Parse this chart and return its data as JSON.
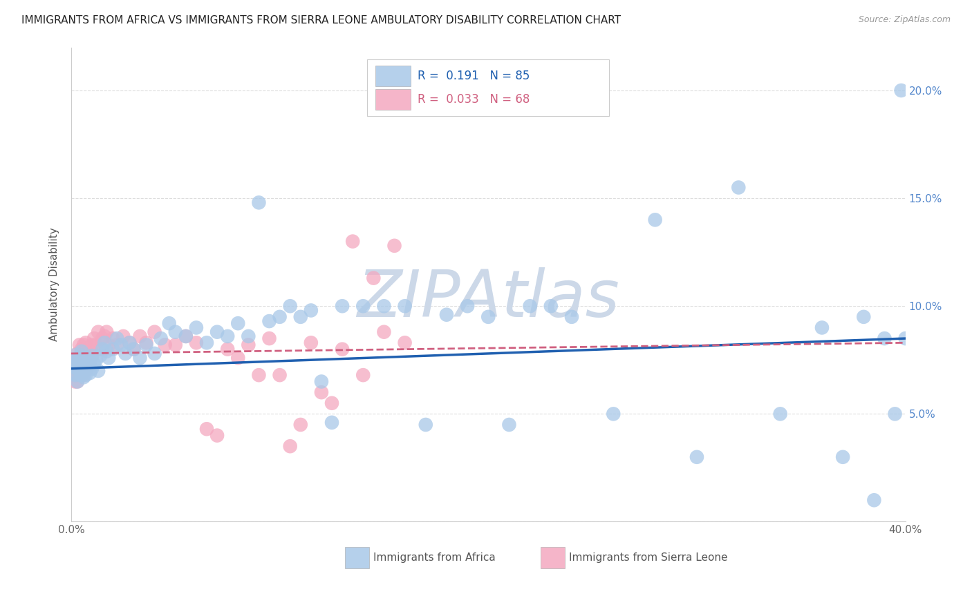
{
  "title": "IMMIGRANTS FROM AFRICA VS IMMIGRANTS FROM SIERRA LEONE AMBULATORY DISABILITY CORRELATION CHART",
  "source": "Source: ZipAtlas.com",
  "ylabel": "Ambulatory Disability",
  "xlim": [
    0.0,
    0.4
  ],
  "ylim": [
    0.0,
    0.22
  ],
  "series1_color": "#a8c8e8",
  "series2_color": "#f4a8c0",
  "series1_label": "Immigrants from Africa",
  "series2_label": "Immigrants from Sierra Leone",
  "series1_R": "0.191",
  "series1_N": "85",
  "series2_R": "0.033",
  "series2_N": "68",
  "trend1_color": "#2060b0",
  "trend2_color": "#d06080",
  "watermark": "ZIPAtlas",
  "watermark_color": "#ccd8e8",
  "background_color": "#ffffff",
  "grid_color": "#dddddd",
  "series1_x": [
    0.001,
    0.002,
    0.002,
    0.003,
    0.003,
    0.003,
    0.004,
    0.004,
    0.004,
    0.005,
    0.005,
    0.005,
    0.005,
    0.006,
    0.006,
    0.006,
    0.007,
    0.007,
    0.007,
    0.008,
    0.008,
    0.009,
    0.009,
    0.01,
    0.01,
    0.011,
    0.012,
    0.013,
    0.014,
    0.015,
    0.016,
    0.017,
    0.018,
    0.02,
    0.022,
    0.024,
    0.026,
    0.028,
    0.03,
    0.033,
    0.036,
    0.04,
    0.043,
    0.047,
    0.05,
    0.055,
    0.06,
    0.065,
    0.07,
    0.075,
    0.08,
    0.085,
    0.09,
    0.095,
    0.1,
    0.105,
    0.11,
    0.115,
    0.12,
    0.125,
    0.13,
    0.14,
    0.15,
    0.16,
    0.17,
    0.18,
    0.19,
    0.2,
    0.21,
    0.22,
    0.23,
    0.24,
    0.26,
    0.28,
    0.3,
    0.32,
    0.34,
    0.36,
    0.37,
    0.38,
    0.385,
    0.39,
    0.395,
    0.398,
    0.4
  ],
  "series1_y": [
    0.072,
    0.074,
    0.068,
    0.076,
    0.071,
    0.065,
    0.07,
    0.075,
    0.073,
    0.068,
    0.072,
    0.076,
    0.079,
    0.067,
    0.074,
    0.07,
    0.072,
    0.075,
    0.068,
    0.073,
    0.076,
    0.069,
    0.074,
    0.071,
    0.077,
    0.073,
    0.075,
    0.07,
    0.077,
    0.08,
    0.083,
    0.079,
    0.076,
    0.08,
    0.085,
    0.082,
    0.078,
    0.083,
    0.08,
    0.076,
    0.082,
    0.078,
    0.085,
    0.092,
    0.088,
    0.086,
    0.09,
    0.083,
    0.088,
    0.086,
    0.092,
    0.086,
    0.148,
    0.093,
    0.095,
    0.1,
    0.095,
    0.098,
    0.065,
    0.046,
    0.1,
    0.1,
    0.1,
    0.1,
    0.045,
    0.096,
    0.1,
    0.095,
    0.045,
    0.1,
    0.1,
    0.095,
    0.05,
    0.14,
    0.03,
    0.155,
    0.05,
    0.09,
    0.03,
    0.095,
    0.01,
    0.085,
    0.05,
    0.2,
    0.085
  ],
  "series2_x": [
    0.001,
    0.001,
    0.002,
    0.002,
    0.002,
    0.003,
    0.003,
    0.003,
    0.003,
    0.004,
    0.004,
    0.004,
    0.005,
    0.005,
    0.005,
    0.005,
    0.006,
    0.006,
    0.006,
    0.007,
    0.007,
    0.007,
    0.008,
    0.008,
    0.009,
    0.009,
    0.01,
    0.01,
    0.011,
    0.012,
    0.013,
    0.014,
    0.015,
    0.016,
    0.017,
    0.018,
    0.02,
    0.022,
    0.025,
    0.028,
    0.03,
    0.033,
    0.036,
    0.04,
    0.045,
    0.05,
    0.055,
    0.06,
    0.065,
    0.07,
    0.075,
    0.08,
    0.085,
    0.09,
    0.095,
    0.1,
    0.105,
    0.11,
    0.115,
    0.12,
    0.125,
    0.13,
    0.135,
    0.14,
    0.145,
    0.15,
    0.155,
    0.16
  ],
  "series2_y": [
    0.075,
    0.068,
    0.073,
    0.065,
    0.07,
    0.068,
    0.074,
    0.078,
    0.065,
    0.072,
    0.076,
    0.082,
    0.069,
    0.073,
    0.08,
    0.077,
    0.074,
    0.068,
    0.082,
    0.07,
    0.077,
    0.083,
    0.072,
    0.078,
    0.074,
    0.079,
    0.082,
    0.076,
    0.085,
    0.082,
    0.088,
    0.08,
    0.085,
    0.086,
    0.088,
    0.082,
    0.085,
    0.082,
    0.086,
    0.083,
    0.08,
    0.086,
    0.083,
    0.088,
    0.082,
    0.082,
    0.086,
    0.083,
    0.043,
    0.04,
    0.08,
    0.076,
    0.082,
    0.068,
    0.085,
    0.068,
    0.035,
    0.045,
    0.083,
    0.06,
    0.055,
    0.08,
    0.13,
    0.068,
    0.113,
    0.088,
    0.128,
    0.083
  ],
  "trend1_start_y": 0.071,
  "trend1_end_y": 0.085,
  "trend2_start_y": 0.078,
  "trend2_end_y": 0.083
}
